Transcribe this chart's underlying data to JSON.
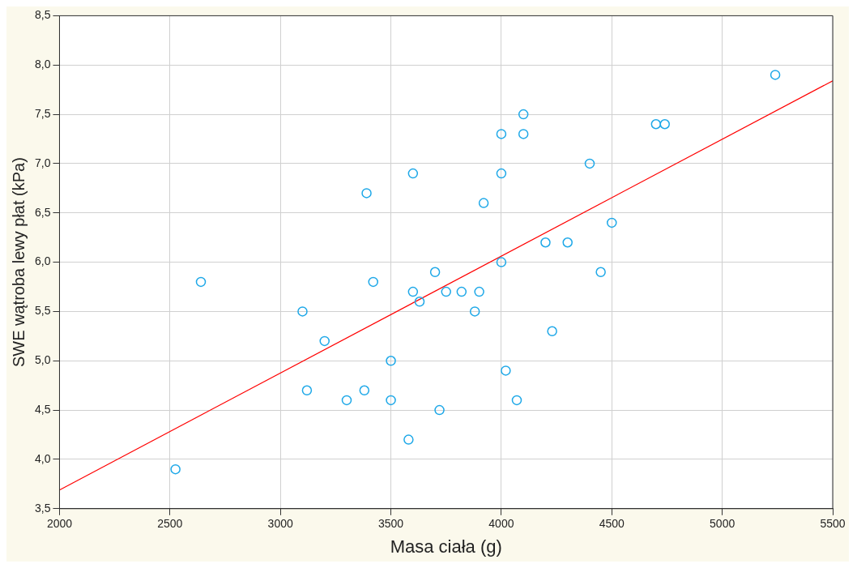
{
  "chart_data": {
    "type": "scatter",
    "xlabel": "Masa ciała (g)",
    "ylabel": "SWE wątroba lewy płat (kPa)",
    "xlim": [
      2000,
      5500
    ],
    "xticks": [
      2000,
      2500,
      3000,
      3500,
      4000,
      4500,
      5000,
      5500
    ],
    "ylim": [
      3.5,
      8.5
    ],
    "yticks": [
      {
        "value": 3.5,
        "label": "3,5"
      },
      {
        "value": 4,
        "label": "4,0"
      },
      {
        "value": 4.5,
        "label": "4,5"
      },
      {
        "value": 5,
        "label": "5,0"
      },
      {
        "value": 5.5,
        "label": "5,5"
      },
      {
        "value": 6,
        "label": "6,0"
      },
      {
        "value": 6.5,
        "label": "6,5"
      },
      {
        "value": 7,
        "label": "7,0"
      },
      {
        "value": 7.5,
        "label": "7,5"
      },
      {
        "value": 8,
        "label": "8,0"
      },
      {
        "value": 8.5,
        "label": "8,5"
      }
    ],
    "grid": true,
    "series": [
      {
        "type": "scatter",
        "marker": "circle",
        "color": "#1ea8e8",
        "x": [
          2525,
          2640,
          3100,
          3120,
          3200,
          3300,
          3380,
          3390,
          3420,
          3500,
          3500,
          3580,
          3600,
          3600,
          3630,
          3700,
          3720,
          3750,
          3820,
          3880,
          3900,
          3920,
          4000,
          4000,
          4000,
          4020,
          4070,
          4100,
          4100,
          4200,
          4230,
          4300,
          4400,
          4450,
          4500,
          4700,
          4740,
          5240
        ],
        "values": [
          3.9,
          5.8,
          5.5,
          4.7,
          5.2,
          4.6,
          4.7,
          6.7,
          5.8,
          5.0,
          4.6,
          4.2,
          6.9,
          5.7,
          5.6,
          5.9,
          4.5,
          5.7,
          5.7,
          5.5,
          5.7,
          6.6,
          7.3,
          6.9,
          6.0,
          4.9,
          4.6,
          7.5,
          7.3,
          6.2,
          5.3,
          6.2,
          7.0,
          5.9,
          6.4,
          7.4,
          7.4,
          7.9
        ]
      },
      {
        "type": "line",
        "color": "#ff0000",
        "x": [
          2000,
          5500
        ],
        "values": [
          3.69,
          7.84
        ]
      }
    ]
  }
}
